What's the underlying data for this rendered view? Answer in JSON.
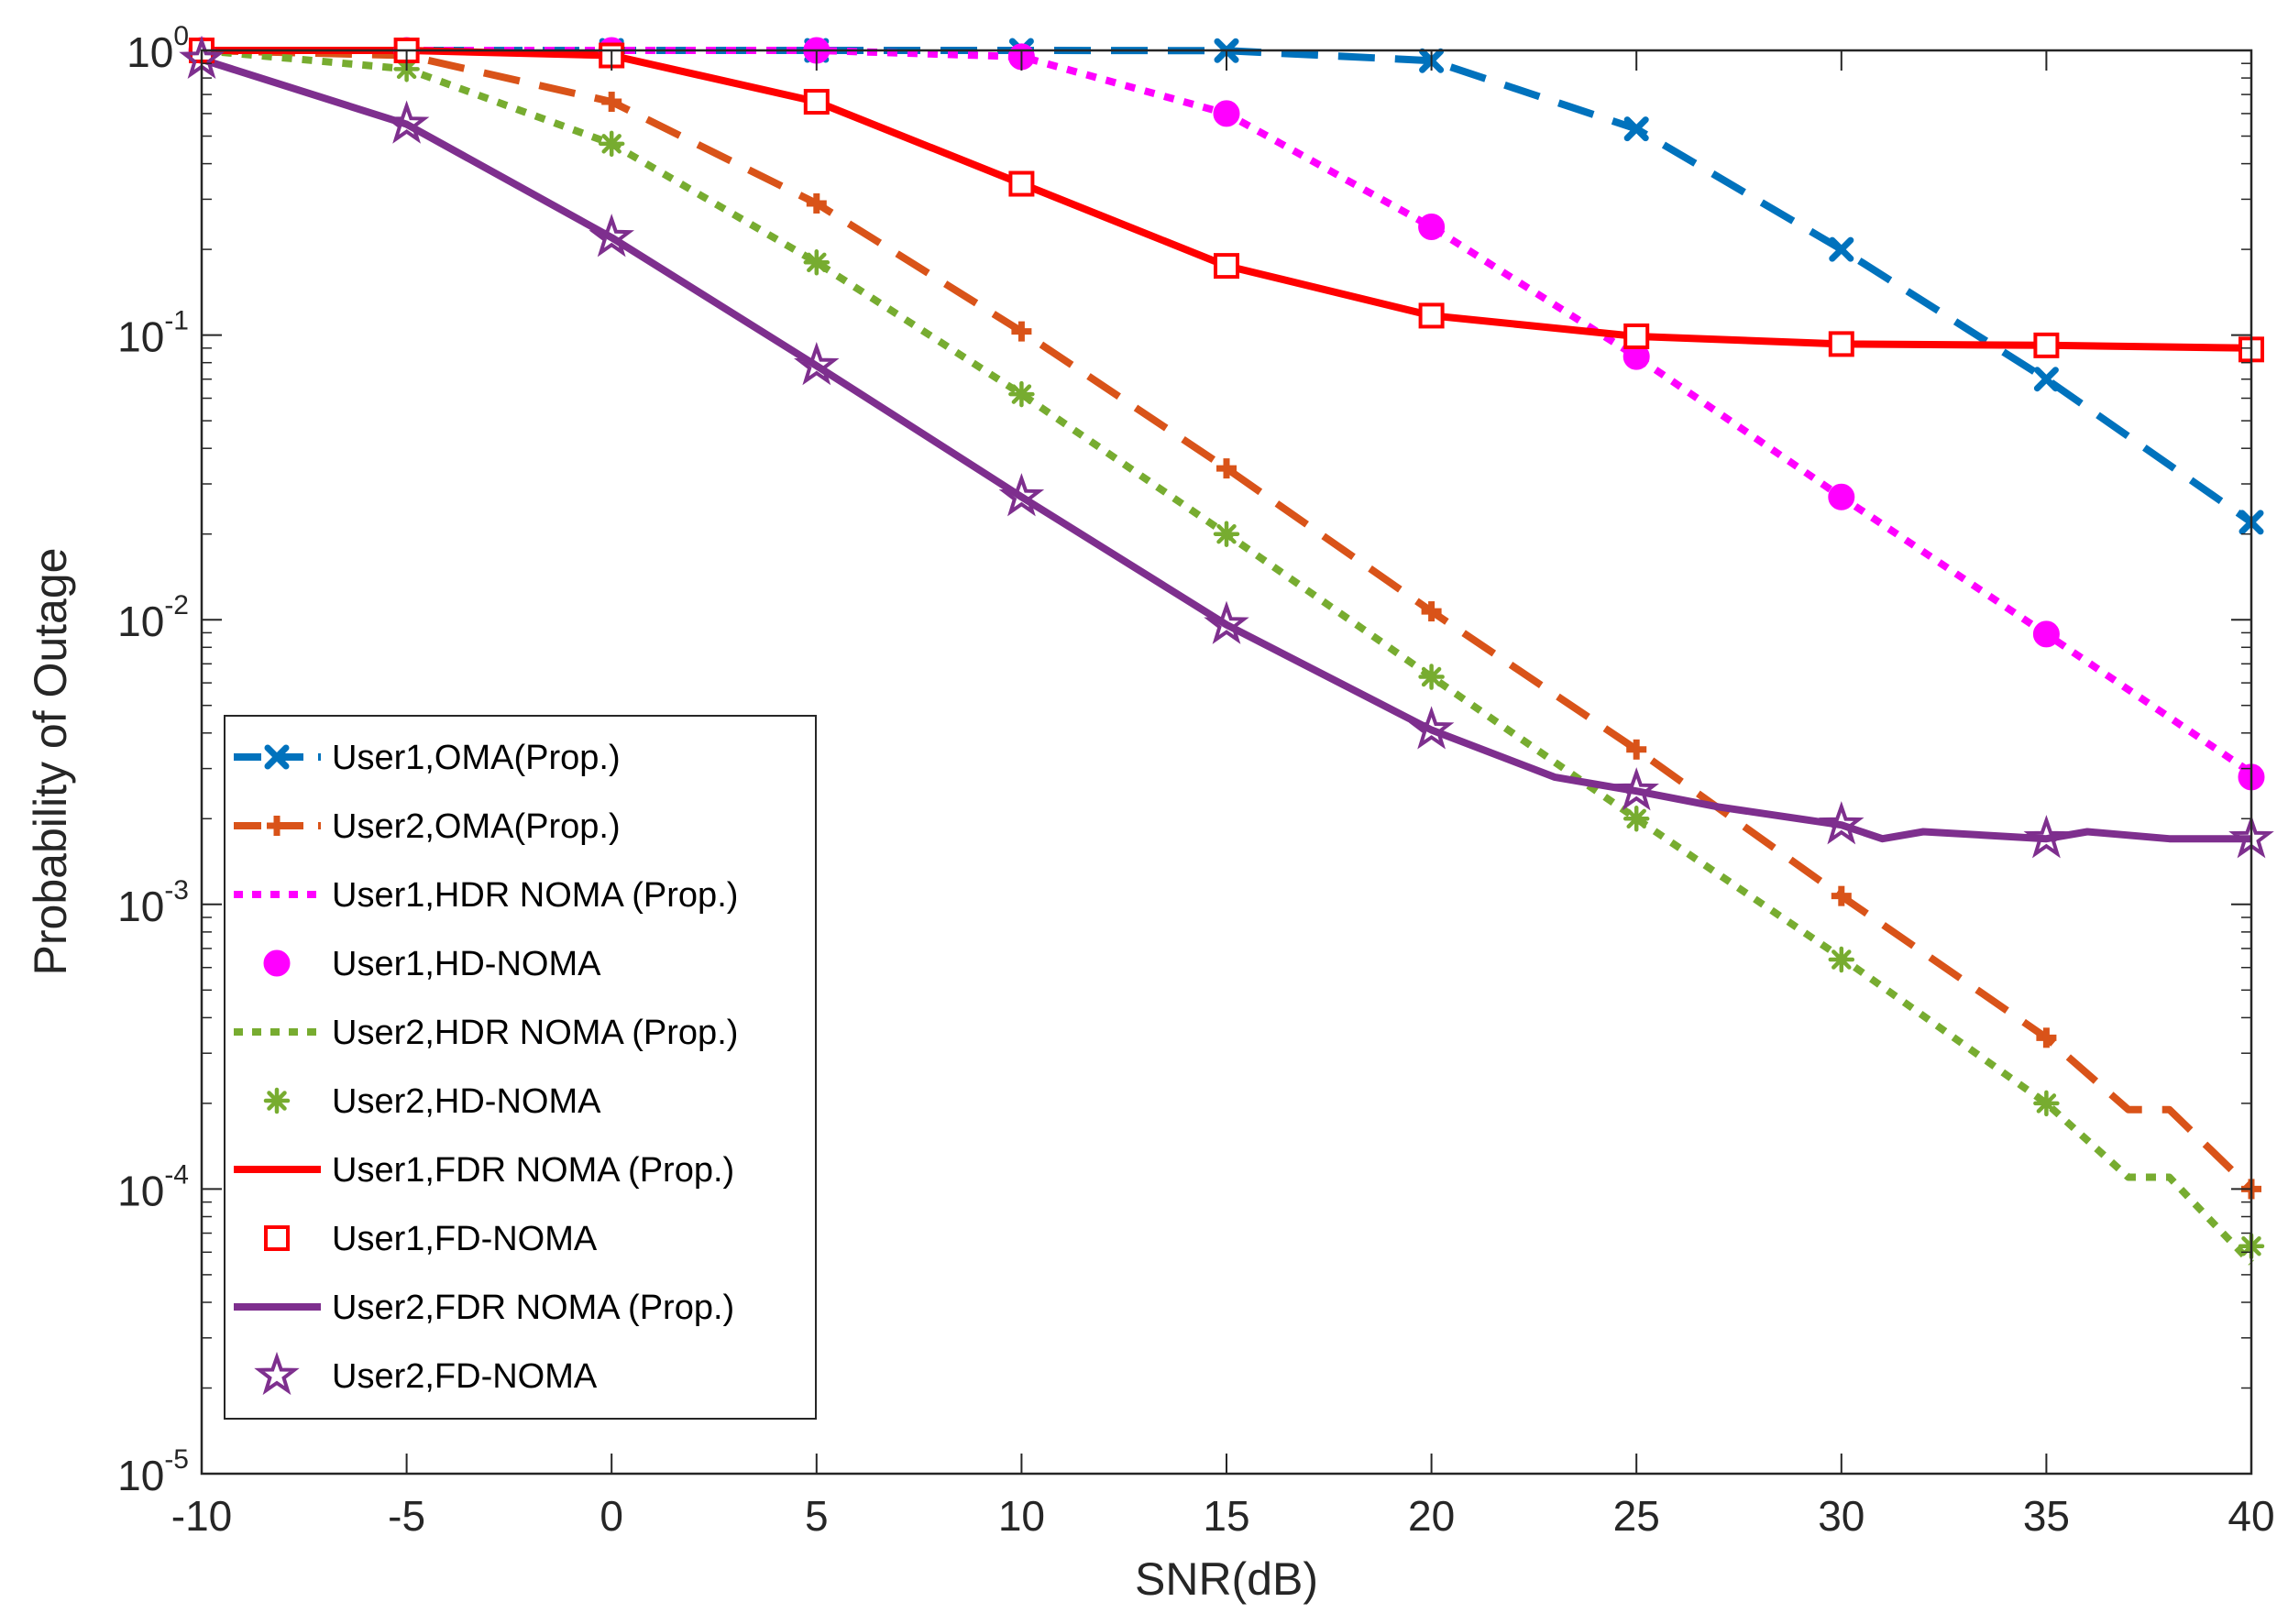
{
  "chart_data": {
    "type": "line",
    "xlabel": "SNR(dB)",
    "ylabel": "Probability of Outage",
    "xlim": [
      -10,
      40
    ],
    "ylim": [
      1e-05,
      1
    ],
    "yscale": "log",
    "xticks": [
      -10,
      -5,
      0,
      5,
      10,
      15,
      20,
      25,
      30,
      35,
      40
    ],
    "xtick_labels": [
      "-10",
      "-5",
      "0",
      "5",
      "10",
      "15",
      "20",
      "25",
      "30",
      "35",
      "40"
    ],
    "yticks": [
      {
        "base": "10",
        "exp": "0",
        "value": 1
      },
      {
        "base": "10",
        "exp": "-1",
        "value": 0.1
      },
      {
        "base": "10",
        "exp": "-2",
        "value": 0.01
      },
      {
        "base": "10",
        "exp": "-3",
        "value": 0.001
      },
      {
        "base": "10",
        "exp": "-4",
        "value": 0.0001
      },
      {
        "base": "10",
        "exp": "-5",
        "value": 1e-05
      }
    ],
    "grid": false,
    "legend_position": "bottom-left",
    "x": [
      -10,
      -5,
      0,
      5,
      10,
      15,
      20,
      25,
      30,
      35,
      40
    ],
    "series": [
      {
        "name": "User1,OMA(Prop.)",
        "color": "#0072BD",
        "style": "dashed",
        "marker": "x",
        "x": [
          -10,
          -5,
          0,
          5,
          10,
          15,
          20,
          25,
          30,
          35,
          40
        ],
        "values": [
          1,
          1,
          1,
          1,
          1,
          0.998,
          0.92,
          0.53,
          0.2,
          0.07,
          0.022
        ]
      },
      {
        "name": "User2,OMA(Prop.)",
        "color": "#D95319",
        "style": "dashed",
        "marker": "plus",
        "x": [
          -10,
          -5,
          0,
          5,
          10,
          15,
          20,
          25,
          30,
          35,
          37,
          38,
          40
        ],
        "values": [
          1,
          0.96,
          0.66,
          0.29,
          0.103,
          0.034,
          0.0107,
          0.0035,
          0.00107,
          0.00034,
          0.00019,
          0.00019,
          0.0001
        ]
      },
      {
        "name": "User1,HDR NOMA (Prop.)",
        "color": "#FF00FF",
        "style": "dotted",
        "marker": "none",
        "x": [
          -10,
          -5,
          0,
          5,
          10,
          15,
          20,
          25,
          30,
          35,
          40
        ],
        "values": [
          1,
          1,
          1,
          1,
          0.95,
          0.6,
          0.24,
          0.084,
          0.027,
          0.0089,
          0.0029
        ]
      },
      {
        "name": "User1,HD-NOMA",
        "color": "#FF00FF",
        "style": "none",
        "marker": "circle",
        "x": [
          -10,
          -5,
          0,
          5,
          10,
          15,
          20,
          25,
          30,
          35,
          40
        ],
        "values": [
          1,
          1,
          1,
          1,
          0.95,
          0.6,
          0.24,
          0.084,
          0.027,
          0.0089,
          0.0028
        ]
      },
      {
        "name": "User2,HDR NOMA (Prop.)",
        "color": "#77AC30",
        "style": "dotted",
        "marker": "none",
        "x": [
          -10,
          -5,
          0,
          5,
          10,
          15,
          20,
          25,
          30,
          35,
          37,
          38,
          40
        ],
        "values": [
          1,
          0.86,
          0.47,
          0.18,
          0.062,
          0.02,
          0.0063,
          0.002,
          0.00065,
          0.0002,
          0.00011,
          0.00011,
          5.5e-05
        ]
      },
      {
        "name": "User2,HD-NOMA",
        "color": "#77AC30",
        "style": "none",
        "marker": "asterisk",
        "x": [
          -10,
          -5,
          0,
          5,
          10,
          15,
          20,
          25,
          30,
          35,
          40
        ],
        "values": [
          1,
          0.86,
          0.47,
          0.18,
          0.062,
          0.02,
          0.0063,
          0.002,
          0.00064,
          0.0002,
          6.3e-05
        ]
      },
      {
        "name": "User1,FDR NOMA (Prop.)",
        "color": "#FF0000",
        "style": "solid",
        "marker": "none",
        "x": [
          -10,
          -5,
          0,
          5,
          10,
          15,
          20,
          25,
          30,
          35,
          40
        ],
        "values": [
          1,
          1,
          0.96,
          0.66,
          0.34,
          0.175,
          0.117,
          0.099,
          0.093,
          0.092,
          0.09
        ]
      },
      {
        "name": "User1,FD-NOMA",
        "color": "#FF0000",
        "style": "none",
        "marker": "square",
        "x": [
          -10,
          -5,
          0,
          5,
          10,
          15,
          20,
          25,
          30,
          35,
          40
        ],
        "values": [
          1,
          1,
          0.96,
          0.66,
          0.34,
          0.175,
          0.117,
          0.099,
          0.093,
          0.092,
          0.089
        ]
      },
      {
        "name": "User2,FDR NOMA (Prop.)",
        "color": "#7E2F8E",
        "style": "solid",
        "marker": "none",
        "x": [
          -10,
          -5,
          0,
          5,
          10,
          15,
          20,
          23,
          25,
          27,
          30,
          31,
          32,
          35,
          36,
          38,
          40
        ],
        "values": [
          0.93,
          0.55,
          0.22,
          0.078,
          0.027,
          0.0096,
          0.0041,
          0.0028,
          0.0025,
          0.0022,
          0.0019,
          0.0017,
          0.0018,
          0.0017,
          0.0018,
          0.0017,
          0.0017
        ]
      },
      {
        "name": "User2,FD-NOMA",
        "color": "#7E2F8E",
        "style": "none",
        "marker": "star",
        "x": [
          -10,
          -5,
          0,
          5,
          10,
          15,
          20,
          25,
          30,
          35,
          40
        ],
        "values": [
          0.93,
          0.55,
          0.22,
          0.078,
          0.027,
          0.0096,
          0.0041,
          0.0025,
          0.0019,
          0.0017,
          0.0017
        ]
      }
    ]
  }
}
